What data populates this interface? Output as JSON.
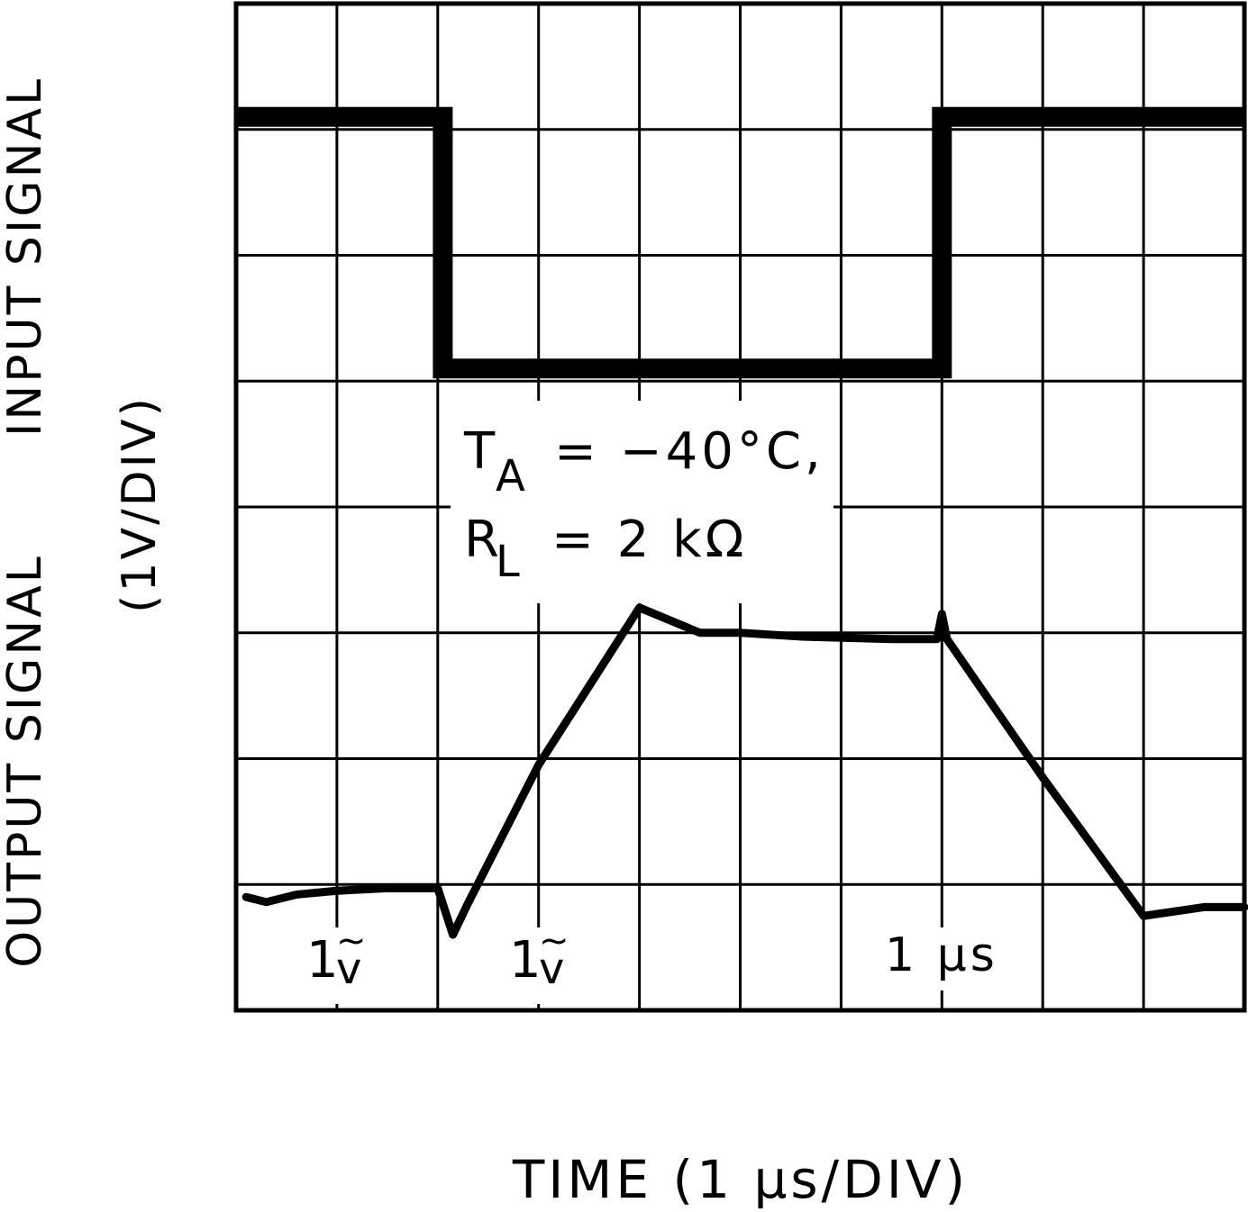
{
  "chart_data": {
    "type": "line",
    "xlabel": "TIME (1 μs/DIV)",
    "ylabel_left": "OUTPUT SIGNAL",
    "ylabel_right": "INPUT SIGNAL",
    "ylabel_scale": "(1V/DIV)",
    "grid": true,
    "x_divisions": 10,
    "y_divisions": 8,
    "xlim": [
      0,
      10
    ],
    "ylim": [
      0,
      8
    ],
    "annotation": {
      "ta_symbol": "T",
      "ta_subscript": "A",
      "ta_value": "= −40°C,",
      "rl_symbol": "R",
      "rl_subscript": "L",
      "rl_value": "= 2 kΩ"
    },
    "scale_labels": [
      {
        "text": "1",
        "mark": "v",
        "tilde": "~"
      },
      {
        "text": "1",
        "mark": "v",
        "tilde": "~"
      },
      {
        "text": "1 μs"
      }
    ],
    "series": [
      {
        "name": "INPUT SIGNAL",
        "x": [
          0,
          2.05,
          2.05,
          7.0,
          7.0,
          10
        ],
        "y": [
          7.1,
          7.1,
          5.1,
          5.1,
          7.1,
          7.1
        ]
      },
      {
        "name": "OUTPUT SIGNAL",
        "x": [
          0.1,
          0.3,
          0.6,
          1.0,
          1.5,
          2.0,
          2.15,
          2.3,
          3.0,
          4.0,
          4.6,
          5.0,
          5.6,
          6.5,
          6.95,
          7.0,
          7.05,
          8.0,
          9.0,
          9.6,
          9.8,
          10.0
        ],
        "y": [
          0.9,
          0.86,
          0.92,
          0.95,
          0.97,
          0.97,
          0.6,
          0.85,
          1.95,
          3.2,
          3.0,
          3.0,
          2.97,
          2.95,
          2.95,
          3.15,
          2.95,
          1.85,
          0.75,
          0.82,
          0.82,
          0.82
        ]
      }
    ]
  }
}
